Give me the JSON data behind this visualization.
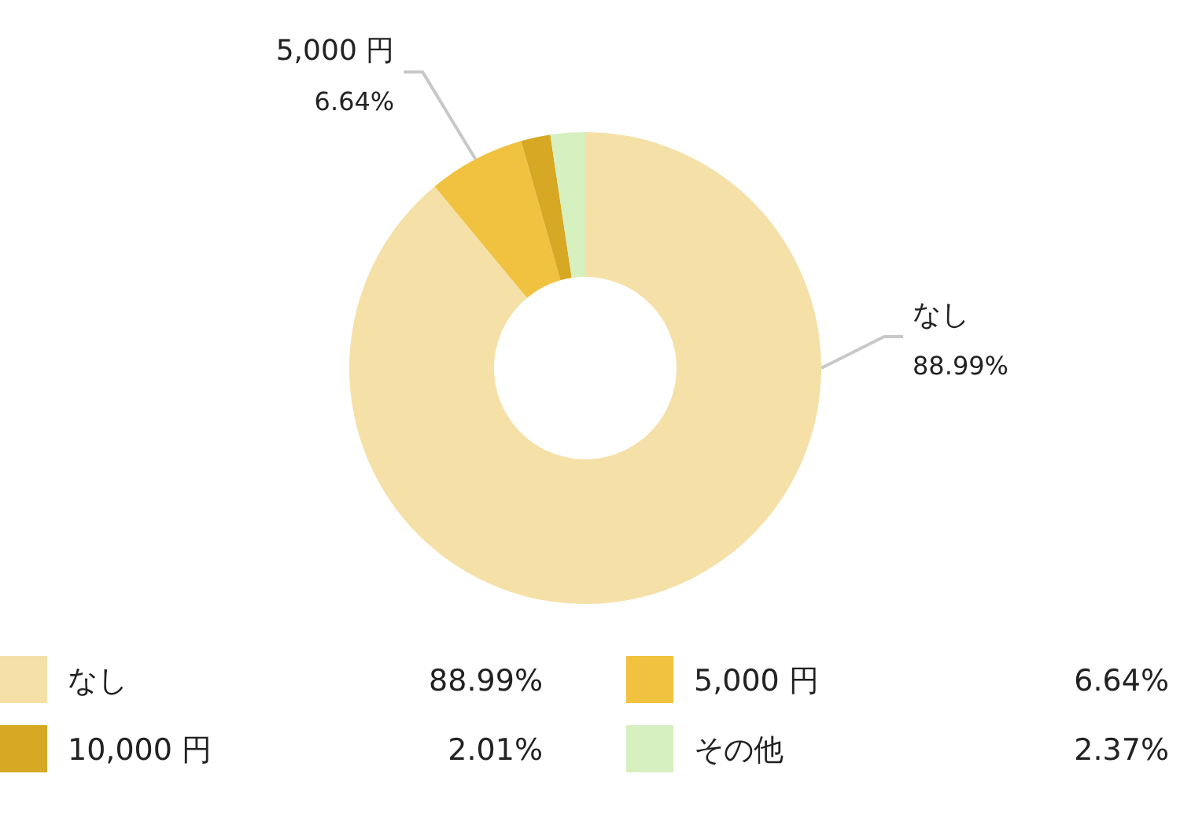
{
  "chart_data": {
    "type": "donut",
    "categories": [
      "なし",
      "5,000 円",
      "10,000 円",
      "その他"
    ],
    "values": [
      88.99,
      6.64,
      2.01,
      2.37
    ],
    "colors": [
      "#f5e0a8",
      "#f0c240",
      "#d6a824",
      "#d6f0bf"
    ],
    "value_labels": [
      "88.99%",
      "6.64%",
      "2.01%",
      "2.37%"
    ],
    "legend": "bottom"
  }
}
